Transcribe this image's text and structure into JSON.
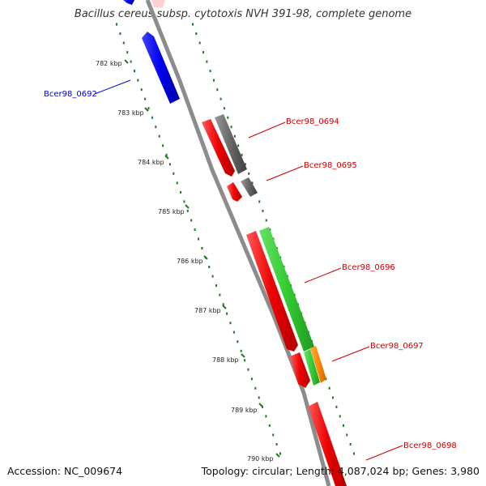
{
  "title": "Bacillus cereus subsp. cytotoxis NVH 391-98, complete genome",
  "footer": {
    "accession": "Accession: NC_009674",
    "topology": "Topology: circular; Length: 4,087,024 bp; Genes: 3,980"
  },
  "colors": {
    "backbone": "#8c8c8c",
    "tick_dots": "#1f7a1f",
    "blue_label": "#0000cc",
    "red_label": "#cc0000",
    "gene_blue": "#0000ee",
    "gene_red": "#ee0000",
    "gene_gray": "#666666",
    "gene_green": "#33cc33",
    "gene_orange": "#ff8800",
    "gene_pink": "#ffcccc"
  },
  "kbp_labels": [
    "782 kbp",
    "783 kbp",
    "784 kbp",
    "785 kbp",
    "786 kbp",
    "787 kbp",
    "788 kbp",
    "789 kbp",
    "790 kbp"
  ],
  "gene_labels": [
    {
      "text": "Bcer98_0692",
      "color": "blue"
    },
    {
      "text": "Bcer98_0694",
      "color": "red"
    },
    {
      "text": "Bcer98_0695",
      "color": "red"
    },
    {
      "text": "Bcer98_0696",
      "color": "red"
    },
    {
      "text": "Bcer98_0697",
      "color": "red"
    },
    {
      "text": "Bcer98_0698",
      "color": "red"
    }
  ]
}
